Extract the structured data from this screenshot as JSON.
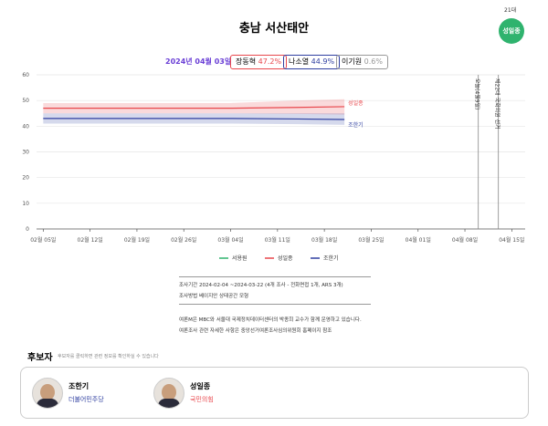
{
  "header": {
    "title": "충남 서산태안",
    "term": "21대",
    "winner": "성일종"
  },
  "summary": {
    "date": "2024년 04월 03일",
    "items": [
      {
        "name": "장동혁",
        "value": "47.2%"
      },
      {
        "name": "나소열",
        "value": "44.9%"
      },
      {
        "name": "이기원",
        "value": "0.6%"
      }
    ]
  },
  "chart_data": {
    "type": "line",
    "ylim": [
      0,
      60
    ],
    "yticks": [
      0,
      10,
      20,
      30,
      40,
      50,
      60
    ],
    "xlim": [
      "02월 04일",
      "04월 17일"
    ],
    "xticks": [
      "02월 05일",
      "02월 12일",
      "02월 19일",
      "02월 26일",
      "03월 04일",
      "03월 11일",
      "03월 18일",
      "03월 25일",
      "04월 01일",
      "04월 08일",
      "04월 15일"
    ],
    "x": [
      "02월 05일",
      "02월 19일",
      "03월 04일",
      "03월 14일",
      "03월 21일"
    ],
    "series": [
      {
        "name": "서용원",
        "color": "#2fb36e",
        "values": [
          null,
          null,
          null,
          null,
          null
        ]
      },
      {
        "name": "성일종",
        "color": "#e8474c",
        "values": [
          47,
          47,
          47,
          47.3,
          47.6
        ],
        "lower": [
          45,
          45,
          45,
          44.8,
          44.5
        ],
        "upper": [
          49,
          49,
          49,
          50,
          50.5
        ]
      },
      {
        "name": "조한기",
        "color": "#2f3fa0",
        "values": [
          43,
          43,
          43,
          42.8,
          42.6
        ],
        "lower": [
          41,
          41,
          41,
          40.8,
          40.5
        ],
        "upper": [
          45,
          45,
          45,
          45,
          45
        ]
      }
    ],
    "events": [
      {
        "x": "04월 10일",
        "label": "오늘(4월9일)"
      },
      {
        "x": "04월 13일",
        "label": "제22대 국회의원 선거"
      }
    ]
  },
  "footer": {
    "period": "조사기간 2024-02-04 ~2024-03-22 (4개 조사 - 전화면접 1개, ARS 3개)",
    "method": "조사방법 베이지안 상태공간 모형",
    "note1": "여론M은 MBC와 서울대 국제정치데이터센터의 박종희 교수가 함께 운영하고 있습니다.",
    "note2": "여론조사 관련 자세한 사항은 중앙선거여론조사심의위원회 홈페이지 참조"
  },
  "candidates": {
    "title": "후보자",
    "hint": "후보자를 클릭하면 관련 정보를 확인하실 수 있습니다",
    "list": [
      {
        "name": "조한기",
        "party": "더불어민주당"
      },
      {
        "name": "성일종",
        "party": "국민의힘"
      }
    ]
  }
}
